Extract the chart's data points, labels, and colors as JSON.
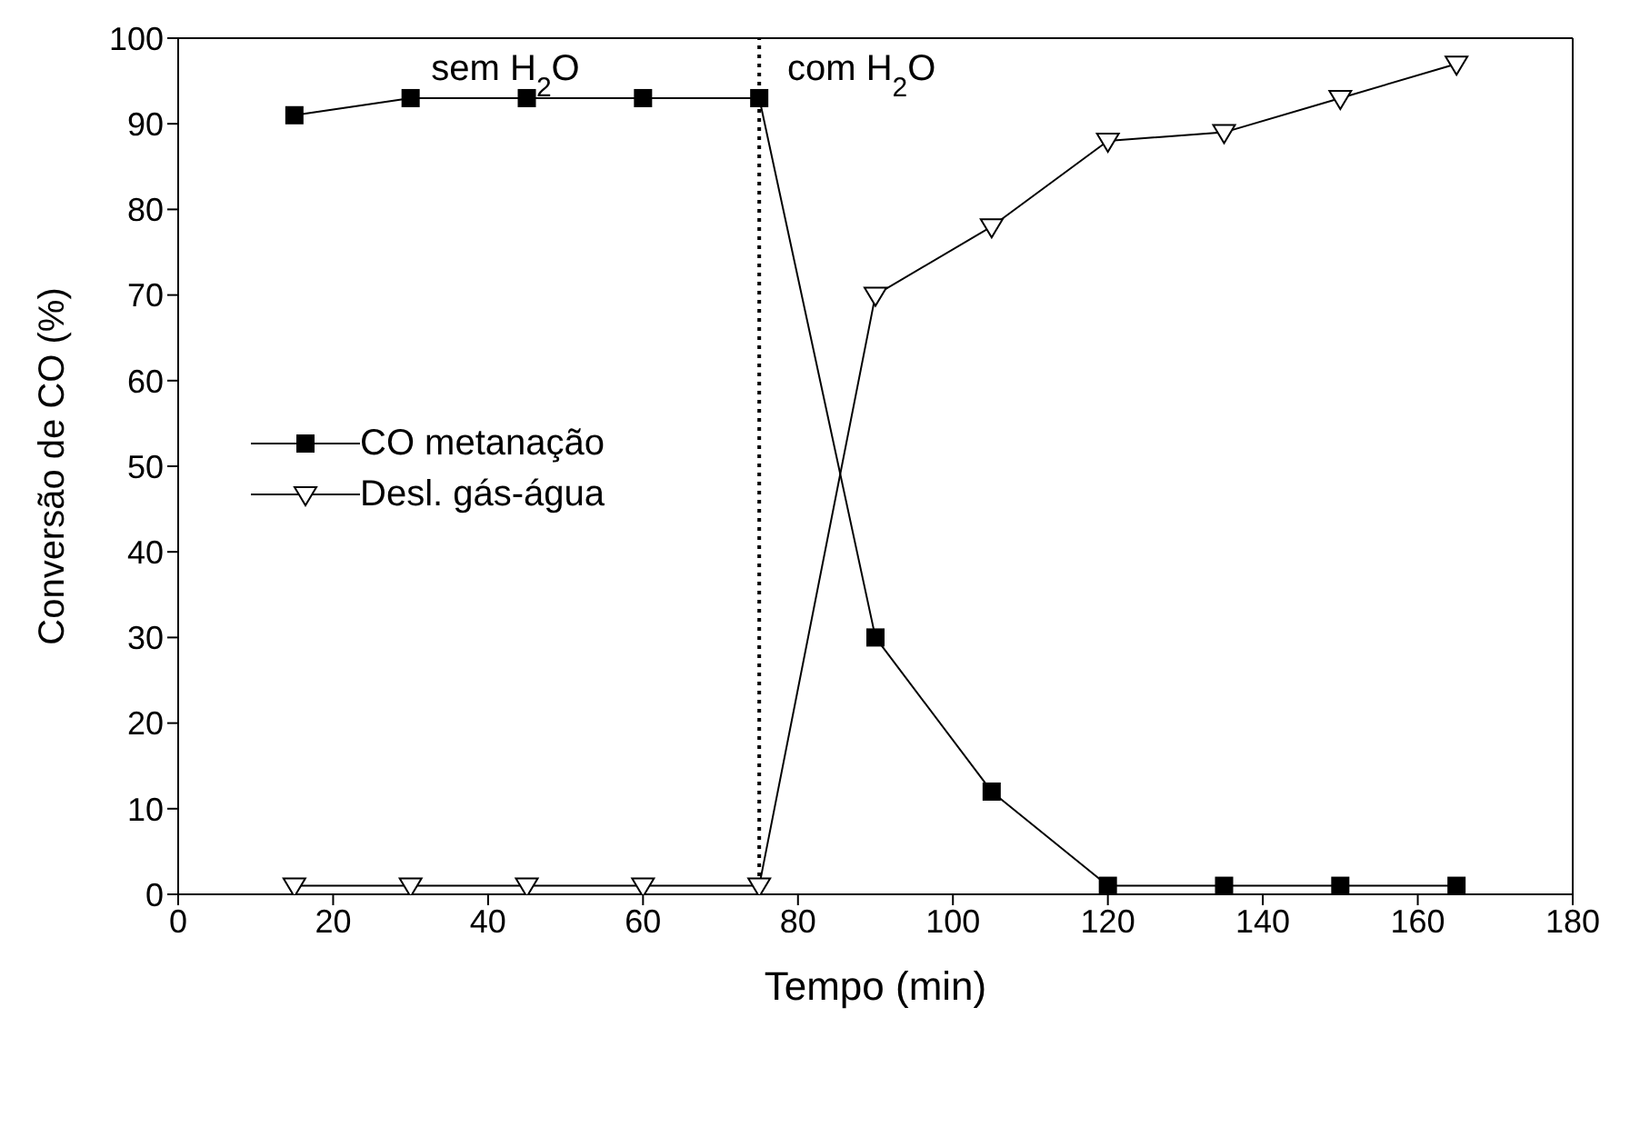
{
  "chart_data": {
    "type": "line",
    "xlabel": "Tempo  (min)",
    "ylabel": "Conversão de CO (%)",
    "x": [
      15,
      30,
      45,
      60,
      75,
      90,
      105,
      120,
      135,
      150,
      165
    ],
    "series": [
      {
        "name": "CO metanação",
        "color": "#000000",
        "marker": "square",
        "values": [
          91,
          93,
          93,
          93,
          93,
          30,
          12,
          1,
          1,
          1,
          1
        ]
      },
      {
        "name": "Desl. gás-água",
        "color": "#000000",
        "marker": "triangle",
        "values": [
          1,
          1,
          1,
          1,
          1,
          70,
          78,
          88,
          89,
          93,
          97
        ]
      }
    ],
    "xlim": [
      0,
      180
    ],
    "xticks": [
      0,
      20,
      40,
      60,
      80,
      100,
      120,
      140,
      160,
      180
    ],
    "ylim": [
      0,
      100
    ],
    "yticks": [
      0,
      10,
      20,
      30,
      40,
      50,
      60,
      70,
      80,
      90,
      100
    ],
    "ref_lines": [
      {
        "axis": "x",
        "value": 75,
        "color": "#000000",
        "line_style": "dotted"
      }
    ],
    "annotations": [
      "sem  H$_{2}$O",
      "com H$_{2}$O"
    ],
    "legend": "left",
    "grid": false
  }
}
